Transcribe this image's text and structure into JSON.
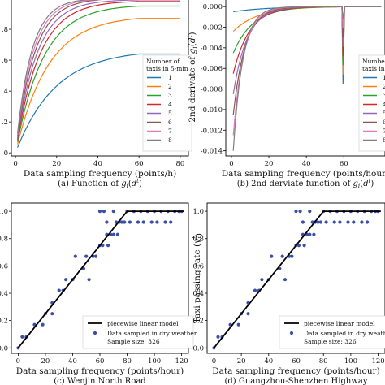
{
  "panels": [
    {
      "caption": "(a) Function of g_i(d^t)",
      "chart_data": {
        "type": "line",
        "xlabel": "Data sampling frequency (points/h)",
        "ylabel": "",
        "xlim": [
          -2,
          84
        ],
        "ylim": [
          -0.02,
          1.0
        ],
        "xticks": [
          0,
          20,
          40,
          60,
          80
        ],
        "yticks": [
          0.0,
          0.2,
          0.4,
          0.6,
          0.8
        ],
        "ytick_labels": [
          "0",
          ".2",
          ".4",
          ".6",
          ".8"
        ],
        "legend_title": [
          "Number of",
          "taxis in 5-min"
        ],
        "series": [
          {
            "name": "1",
            "plateau": 0.64
          },
          {
            "name": "2",
            "plateau": 0.87
          },
          {
            "name": "3",
            "plateau": 0.95
          },
          {
            "name": "4",
            "plateau": 0.98
          },
          {
            "name": "5",
            "plateau": 0.99
          },
          {
            "name": "6",
            "plateau": 1.0
          },
          {
            "name": "7",
            "plateau": 1.0
          },
          {
            "name": "8",
            "plateau": 1.0
          }
        ]
      }
    },
    {
      "caption": "(b) 2nd derviate function of g_i(d^t)",
      "chart_data": {
        "type": "line",
        "xlabel": "Data sampling frequency (points/hour)",
        "ylabel": "2nd derivate of g_i(d^t)",
        "xlim": [
          -3,
          82
        ],
        "ylim": [
          -0.0145,
          0.0008
        ],
        "xticks": [
          0,
          20,
          40,
          60
        ],
        "yticks": [
          0.0,
          -0.002,
          -0.004,
          -0.006,
          -0.008,
          -0.01,
          -0.012,
          -0.014
        ],
        "ytick_labels": [
          "0.000",
          "-0.002",
          "-0.004",
          "-0.006",
          "-0.008",
          "-0.010",
          "-0.012",
          "-0.014"
        ],
        "legend_title": [
          "Number o",
          "taxis in 5-"
        ],
        "series": [
          {
            "name": "1",
            "min_at_x1": -0.0005
          },
          {
            "name": "2",
            "min_at_x1": -0.0024
          },
          {
            "name": "3",
            "min_at_x1": -0.0045
          },
          {
            "name": "4",
            "min_at_x1": -0.0065
          },
          {
            "name": "5",
            "min_at_x1": -0.0085
          },
          {
            "name": "6",
            "min_at_x1": -0.0105
          },
          {
            "name": "7",
            "min_at_x1": -0.0125
          },
          {
            "name": "8",
            "min_at_x1": -0.014
          }
        ]
      }
    },
    {
      "caption": "(c) Wenjin North Road",
      "chart_data": {
        "type": "scatter",
        "xlabel": "Data sampling frequency (points/hour)",
        "ylabel": "",
        "xlim": [
          -5,
          125
        ],
        "ylim": [
          -0.04,
          1.06
        ],
        "xticks": [
          0,
          20,
          40,
          60,
          80,
          100,
          120
        ],
        "yticks": [
          0.0,
          0.2,
          0.4,
          0.6,
          0.8,
          1.0
        ],
        "ytick_labels": [
          "0.0",
          "0.2",
          "0.4",
          "0.6",
          "0.8",
          "1.0"
        ],
        "legend": [
          "piecewise linear model",
          "Data sampled in dry weather",
          "Sample size: 326"
        ],
        "model_line": [
          [
            0,
            0
          ],
          [
            80,
            1.0
          ],
          [
            122,
            1.0
          ]
        ],
        "points": [
          [
            0,
            0.0
          ],
          [
            3,
            0.08
          ],
          [
            6,
            0.08
          ],
          [
            12,
            0.17
          ],
          [
            18,
            0.17
          ],
          [
            20,
            0.25
          ],
          [
            25,
            0.25
          ],
          [
            25,
            0.33
          ],
          [
            30,
            0.42
          ],
          [
            33,
            0.42
          ],
          [
            35,
            0.5
          ],
          [
            40,
            0.5
          ],
          [
            42,
            0.67
          ],
          [
            48,
            0.58
          ],
          [
            50,
            0.67
          ],
          [
            52,
            0.5
          ],
          [
            55,
            0.67
          ],
          [
            57,
            0.67
          ],
          [
            60,
            0.75
          ],
          [
            62,
            0.75
          ],
          [
            65,
            0.83
          ],
          [
            66,
            0.75
          ],
          [
            68,
            0.83
          ],
          [
            70,
            0.83
          ],
          [
            72,
            0.92
          ],
          [
            73,
            0.83
          ],
          [
            74,
            0.92
          ],
          [
            60,
            1.0
          ],
          [
            63,
            1.0
          ],
          [
            65,
            0.92
          ],
          [
            70,
            1.0
          ],
          [
            76,
            0.92
          ],
          [
            78,
            0.92
          ],
          [
            80,
            1.0
          ],
          [
            82,
            0.92
          ],
          [
            85,
            1.0
          ],
          [
            88,
            0.92
          ],
          [
            90,
            1.0
          ],
          [
            92,
            0.92
          ],
          [
            95,
            1.0
          ],
          [
            98,
            0.92
          ],
          [
            100,
            1.0
          ],
          [
            102,
            0.92
          ],
          [
            105,
            1.0
          ],
          [
            108,
            0.92
          ],
          [
            110,
            1.0
          ],
          [
            112,
            0.92
          ],
          [
            115,
            1.0
          ],
          [
            118,
            1.0
          ],
          [
            120,
            1.0
          ]
        ]
      }
    },
    {
      "caption": "(d) Guangzhou-Shenzhen Highway",
      "chart_data": {
        "type": "scatter",
        "xlabel": "Data sampling frequency (points/hour)",
        "ylabel": "Taxi passing rate (y_i^t)",
        "xlim": [
          -5,
          125
        ],
        "ylim": [
          -0.04,
          1.06
        ],
        "xticks": [
          0,
          20,
          40,
          60,
          80,
          100,
          120
        ],
        "yticks": [
          0.0,
          0.2,
          0.4,
          0.6,
          0.8,
          1.0
        ],
        "ytick_labels": [
          "0.0",
          "0.2",
          "0.4",
          "0.6",
          "0.8",
          "1.0"
        ],
        "legend": [
          "piecewise linear model",
          "Data sampled in dry weather",
          "Sample size: 326"
        ],
        "model_line": [
          [
            0,
            0
          ],
          [
            80,
            1.0
          ],
          [
            122,
            1.0
          ]
        ],
        "points": [
          [
            0,
            0.0
          ],
          [
            3,
            0.08
          ],
          [
            6,
            0.08
          ],
          [
            12,
            0.17
          ],
          [
            18,
            0.17
          ],
          [
            20,
            0.25
          ],
          [
            25,
            0.25
          ],
          [
            25,
            0.33
          ],
          [
            30,
            0.42
          ],
          [
            33,
            0.42
          ],
          [
            35,
            0.5
          ],
          [
            40,
            0.5
          ],
          [
            42,
            0.67
          ],
          [
            48,
            0.58
          ],
          [
            50,
            0.67
          ],
          [
            52,
            0.5
          ],
          [
            55,
            0.67
          ],
          [
            57,
            0.67
          ],
          [
            60,
            0.75
          ],
          [
            62,
            0.75
          ],
          [
            65,
            0.83
          ],
          [
            66,
            0.75
          ],
          [
            68,
            0.83
          ],
          [
            70,
            0.83
          ],
          [
            72,
            0.92
          ],
          [
            73,
            0.83
          ],
          [
            74,
            0.92
          ],
          [
            60,
            1.0
          ],
          [
            63,
            1.0
          ],
          [
            65,
            0.92
          ],
          [
            70,
            1.0
          ],
          [
            76,
            0.92
          ],
          [
            78,
            0.92
          ],
          [
            80,
            1.0
          ],
          [
            82,
            0.92
          ],
          [
            85,
            1.0
          ],
          [
            88,
            0.92
          ],
          [
            90,
            1.0
          ],
          [
            92,
            0.92
          ],
          [
            95,
            1.0
          ],
          [
            98,
            0.92
          ],
          [
            100,
            1.0
          ],
          [
            102,
            0.92
          ],
          [
            105,
            1.0
          ],
          [
            108,
            0.92
          ],
          [
            110,
            1.0
          ],
          [
            112,
            0.92
          ],
          [
            115,
            1.0
          ],
          [
            118,
            1.0
          ],
          [
            120,
            1.0
          ]
        ]
      }
    }
  ],
  "palette": [
    "#1f77b4",
    "#ff7f0e",
    "#2ca02c",
    "#d62728",
    "#9467bd",
    "#8c564b",
    "#e377c2",
    "#7f7f7f"
  ],
  "scatter_color": "#3b4fa8",
  "line_color": "#000000"
}
